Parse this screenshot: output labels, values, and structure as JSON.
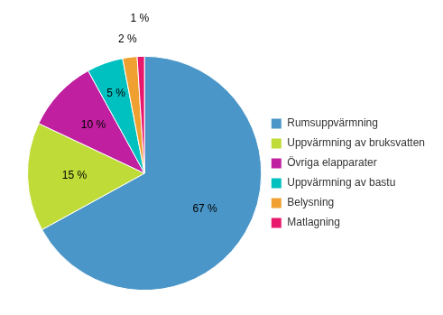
{
  "chart_data": {
    "type": "pie",
    "categories": [
      "Rumsuppvärmning",
      "Uppvärmning av bruksvatten",
      "Övriga elapparater",
      "Uppvärmning av bastu",
      "Belysning",
      "Matlagning"
    ],
    "values": [
      67,
      15,
      10,
      5,
      2,
      1
    ],
    "value_labels": [
      "67 %",
      "15 %",
      "10 %",
      "5 %",
      "2 %",
      "1 %"
    ],
    "colors": [
      "#4B96C8",
      "#BFDB38",
      "#C020A0",
      "#00C0C0",
      "#F0A030",
      "#E8186C"
    ],
    "data_labels": true,
    "legend": "right"
  }
}
